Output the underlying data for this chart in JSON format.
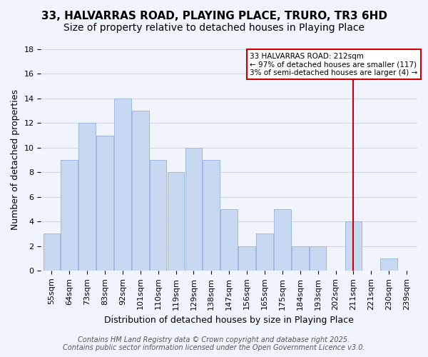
{
  "title": "33, HALVARRAS ROAD, PLAYING PLACE, TRURO, TR3 6HD",
  "subtitle": "Size of property relative to detached houses in Playing Place",
  "xlabel": "Distribution of detached houses by size in Playing Place",
  "ylabel": "Number of detached properties",
  "bar_labels": [
    "55sqm",
    "64sqm",
    "73sqm",
    "83sqm",
    "92sqm",
    "101sqm",
    "110sqm",
    "119sqm",
    "129sqm",
    "138sqm",
    "147sqm",
    "156sqm",
    "165sqm",
    "175sqm",
    "184sqm",
    "193sqm",
    "202sqm",
    "211sqm",
    "221sqm",
    "230sqm",
    "239sqm"
  ],
  "bar_heights": [
    3,
    9,
    12,
    11,
    14,
    13,
    9,
    8,
    10,
    9,
    5,
    2,
    3,
    5,
    2,
    2,
    0,
    4,
    0,
    1,
    0
  ],
  "bar_color": "#c8d8f0",
  "bar_edge_color": "#a0b8e0",
  "grid_color": "#d0d8e8",
  "background_color": "#f0f4fc",
  "vline_x_index": 17,
  "vline_color": "#cc0000",
  "legend_text_line1": "33 HALVARRAS ROAD: 212sqm",
  "legend_text_line2": "← 97% of detached houses are smaller (117)",
  "legend_text_line3": "3% of semi-detached houses are larger (4) →",
  "legend_box_color": "#cc0000",
  "ylim": [
    0,
    18
  ],
  "yticks": [
    0,
    2,
    4,
    6,
    8,
    10,
    12,
    14,
    16,
    18
  ],
  "footer_line1": "Contains HM Land Registry data © Crown copyright and database right 2025.",
  "footer_line2": "Contains public sector information licensed under the Open Government Licence v3.0.",
  "title_fontsize": 11,
  "subtitle_fontsize": 10,
  "axis_label_fontsize": 9,
  "tick_fontsize": 8,
  "footer_fontsize": 7
}
